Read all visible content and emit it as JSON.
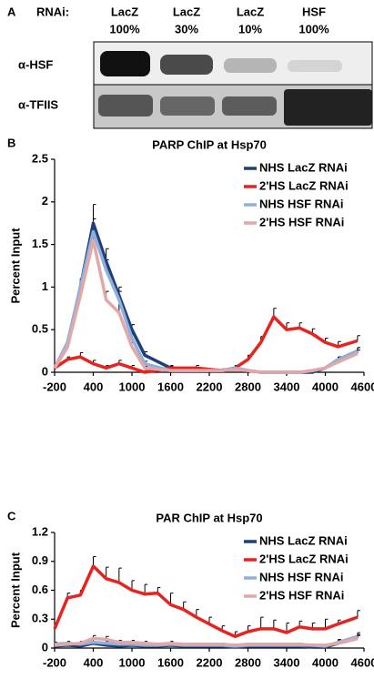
{
  "blot": {
    "label": "A",
    "rnai_label": "RNAi:",
    "lanes": [
      {
        "name": "LacZ",
        "percent": "100%"
      },
      {
        "name": "LacZ",
        "percent": "30%"
      },
      {
        "name": "LacZ",
        "percent": "10%"
      },
      {
        "name": "HSF",
        "percent": "100%"
      }
    ],
    "rows": [
      "α-HSF",
      "α-TFIIS"
    ]
  },
  "chart_data": [
    {
      "type": "line",
      "label": "B",
      "title": "PARP ChIP at Hsp70",
      "y_label": "Percent Input",
      "x": [
        -200,
        0,
        200,
        400,
        600,
        800,
        1000,
        1200,
        1600,
        2000,
        2400,
        2600,
        2800,
        3000,
        3200,
        3400,
        3600,
        3800,
        4000,
        4200,
        4500
      ],
      "xlim": [
        -200,
        4600
      ],
      "xticks": [
        -200,
        400,
        1000,
        1600,
        2200,
        2800,
        3400,
        4000,
        4600
      ],
      "ylim": [
        0,
        2.5
      ],
      "yticks": [
        0,
        0.5,
        1,
        1.5,
        2,
        2.5
      ],
      "legend": "upper right",
      "series": [
        {
          "name": "NHS LacZ RNAi",
          "color": "#1f3f7a",
          "values": [
            0.05,
            0.3,
            1.0,
            1.75,
            1.3,
            0.9,
            0.5,
            0.2,
            0.05,
            0.02,
            0.02,
            0.05,
            0.02,
            0,
            0,
            0,
            0,
            0,
            0.05,
            0.15,
            0.25
          ],
          "errors": [
            0.02,
            0.05,
            0.1,
            0.22,
            0.15,
            0.1,
            0.06,
            0.04,
            0.02,
            0.01,
            0.01,
            0.02,
            0.01,
            0,
            0,
            0,
            0,
            0,
            0.02,
            0.03,
            0.04
          ]
        },
        {
          "name": "2'HS LacZ RNAi",
          "color": "#e8231f",
          "values": [
            0.05,
            0.15,
            0.18,
            0.1,
            0.05,
            0.1,
            0.05,
            0,
            0.05,
            0.05,
            0.02,
            0.05,
            0.15,
            0.35,
            0.65,
            0.5,
            0.52,
            0.45,
            0.35,
            0.3,
            0.37
          ],
          "errors": [
            0.02,
            0.03,
            0.05,
            0.04,
            0.03,
            0.04,
            0.03,
            0.02,
            0.03,
            0.03,
            0.02,
            0.03,
            0.05,
            0.07,
            0.1,
            0.08,
            0.06,
            0.06,
            0.05,
            0.06,
            0.06
          ]
        },
        {
          "name": "NHS HSF RNAi",
          "color": "#8fb0dc",
          "values": [
            0.05,
            0.35,
            1.0,
            1.65,
            1.2,
            0.85,
            0.4,
            0.1,
            0.02,
            0.02,
            0.02,
            0.05,
            0.02,
            0,
            0,
            0,
            0,
            0.02,
            0.05,
            0.15,
            0.25
          ],
          "errors": [
            0.02,
            0.05,
            0.1,
            0.15,
            0.12,
            0.1,
            0.06,
            0.03,
            0.01,
            0.01,
            0.01,
            0.02,
            0.01,
            0,
            0,
            0,
            0,
            0.01,
            0.02,
            0.03,
            0.04
          ]
        },
        {
          "name": "2'HS HSF RNAi",
          "color": "#e3a7a7",
          "values": [
            0.05,
            0.3,
            0.9,
            1.55,
            0.85,
            0.7,
            0.3,
            0.05,
            0.02,
            0.02,
            0.02,
            0.03,
            0.02,
            0,
            0,
            0,
            0,
            0.02,
            0.05,
            0.12,
            0.22
          ],
          "errors": [
            0.02,
            0.05,
            0.1,
            0.15,
            0.1,
            0.1,
            0.05,
            0.02,
            0.01,
            0.01,
            0.01,
            0.01,
            0.01,
            0,
            0,
            0,
            0,
            0.01,
            0.02,
            0.03,
            0.04
          ]
        }
      ]
    },
    {
      "type": "line",
      "label": "C",
      "title": "PAR ChIP at Hsp70",
      "y_label": "Percent Input",
      "x": [
        -200,
        0,
        200,
        400,
        600,
        800,
        1000,
        1200,
        1400,
        1600,
        1800,
        2000,
        2200,
        2400,
        2600,
        2800,
        3000,
        3200,
        3400,
        3600,
        3800,
        4000,
        4200,
        4500
      ],
      "xlim": [
        -200,
        4600
      ],
      "xticks": [
        -200,
        400,
        1000,
        1600,
        2200,
        2800,
        3400,
        4000,
        4600
      ],
      "ylim": [
        0,
        1.2
      ],
      "yticks": [
        0,
        0.3,
        0.6,
        0.9,
        1.2
      ],
      "legend": "upper right",
      "series": [
        {
          "name": "NHS LacZ RNAi",
          "color": "#1f3f7a",
          "values": [
            0.02,
            0.03,
            0.02,
            0.05,
            0.03,
            0.02,
            0.03,
            0.02,
            0.02,
            0.03,
            0.02,
            0.02,
            0.02,
            0.02,
            0.01,
            0.02,
            0.02,
            0.02,
            0.02,
            0.02,
            0.01,
            0.01,
            0.05,
            0.1
          ],
          "errors": [
            0.01,
            0.02,
            0.01,
            0.02,
            0.02,
            0.01,
            0.02,
            0.01,
            0.01,
            0.02,
            0.01,
            0.01,
            0.01,
            0.01,
            0.01,
            0.01,
            0.01,
            0.01,
            0.01,
            0.01,
            0.01,
            0.01,
            0.03,
            0.04
          ]
        },
        {
          "name": "2'HS LacZ RNAi",
          "color": "#e8231f",
          "values": [
            0.2,
            0.52,
            0.55,
            0.85,
            0.72,
            0.68,
            0.6,
            0.56,
            0.57,
            0.45,
            0.4,
            0.32,
            0.25,
            0.18,
            0.12,
            0.17,
            0.2,
            0.2,
            0.16,
            0.22,
            0.2,
            0.2,
            0.25,
            0.32
          ],
          "errors": [
            0.05,
            0.05,
            0.05,
            0.1,
            0.12,
            0.15,
            0.1,
            0.1,
            0.06,
            0.12,
            0.08,
            0.08,
            0.07,
            0.05,
            0.05,
            0.06,
            0.12,
            0.09,
            0.1,
            0.06,
            0.06,
            0.1,
            0.04,
            0.07
          ]
        },
        {
          "name": "NHS HSF RNAi",
          "color": "#8fb0dc",
          "values": [
            0.04,
            0.05,
            0.04,
            0.06,
            0.05,
            0.04,
            0.04,
            0.03,
            0.03,
            0.04,
            0.03,
            0.03,
            0.03,
            0.03,
            0.02,
            0.03,
            0.03,
            0.03,
            0.03,
            0.03,
            0.03,
            0.02,
            0.06,
            0.12
          ],
          "errors": [
            0.02,
            0.02,
            0.02,
            0.03,
            0.02,
            0.02,
            0.02,
            0.01,
            0.01,
            0.02,
            0.01,
            0.01,
            0.01,
            0.01,
            0.01,
            0.01,
            0.01,
            0.01,
            0.01,
            0.01,
            0.01,
            0.01,
            0.03,
            0.04
          ]
        },
        {
          "name": "2'HS HSF RNAi",
          "color": "#e3a7a7",
          "values": [
            0.03,
            0.04,
            0.05,
            0.1,
            0.09,
            0.06,
            0.06,
            0.05,
            0.04,
            0.05,
            0.04,
            0.04,
            0.04,
            0.04,
            0.03,
            0.04,
            0.04,
            0.04,
            0.04,
            0.04,
            0.03,
            0.03,
            0.05,
            0.1
          ],
          "errors": [
            0.01,
            0.02,
            0.02,
            0.03,
            0.03,
            0.02,
            0.02,
            0.02,
            0.01,
            0.02,
            0.01,
            0.01,
            0.01,
            0.01,
            0.01,
            0.01,
            0.01,
            0.01,
            0.01,
            0.01,
            0.01,
            0.01,
            0.02,
            0.03
          ]
        }
      ]
    }
  ]
}
